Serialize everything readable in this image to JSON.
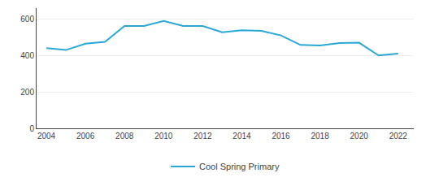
{
  "chart_data": {
    "type": "line",
    "x": [
      2004,
      2005,
      2006,
      2007,
      2008,
      2009,
      2010,
      2011,
      2012,
      2013,
      2014,
      2015,
      2016,
      2017,
      2018,
      2019,
      2020,
      2021,
      2022
    ],
    "series": [
      {
        "name": "Cool Spring Primary",
        "color": "#29a8d8",
        "values": [
          440,
          430,
          465,
          475,
          562,
          562,
          590,
          562,
          562,
          527,
          538,
          535,
          510,
          458,
          455,
          468,
          470,
          400,
          410
        ]
      }
    ],
    "xlim": [
      2003.5,
      2022.8
    ],
    "xticks": [
      2004,
      2006,
      2008,
      2010,
      2012,
      2014,
      2016,
      2018,
      2020,
      2022
    ],
    "ylim": [
      0,
      660
    ],
    "yticks": [
      0,
      200,
      400,
      600
    ],
    "grid": "y",
    "legend": "bottom"
  }
}
